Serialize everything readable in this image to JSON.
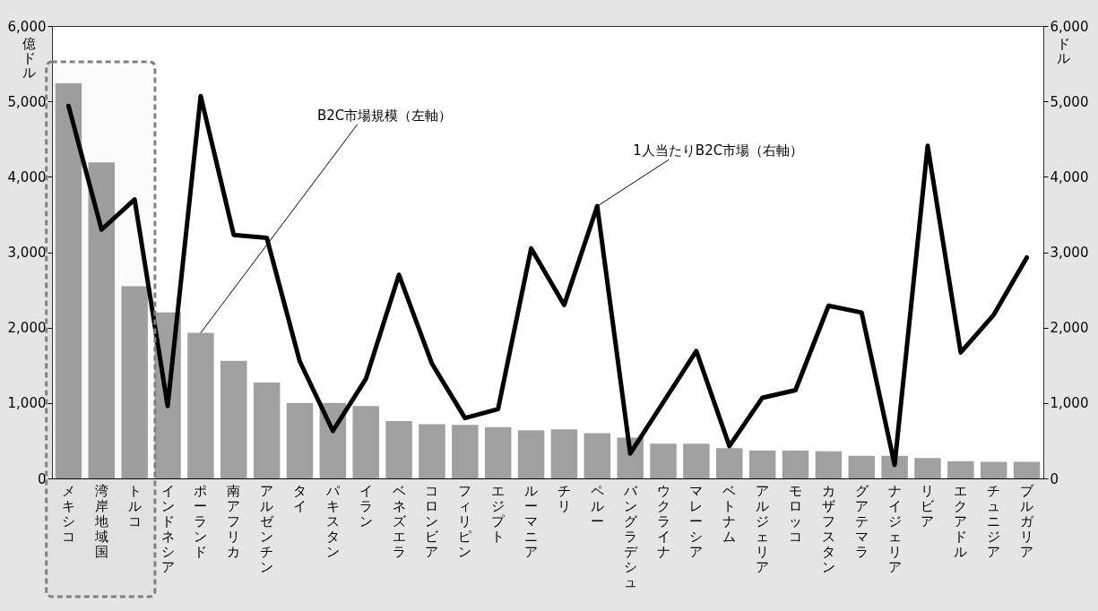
{
  "chart_data": {
    "type": "bar",
    "categories": [
      "メキシコ",
      "湾岸地域国",
      "トルコ",
      "インドネシア",
      "ポーランド",
      "南アフリカ",
      "アルゼンチン",
      "タイ",
      "パキスタン",
      "イラン",
      "ベネズエラ",
      "コロンビア",
      "フィリピン",
      "エジプト",
      "ルーマニア",
      "チリ",
      "ペルー",
      "バングラデシュ",
      "ウクライナ",
      "マレーシア",
      "ベトナム",
      "アルジェリア",
      "モロッコ",
      "カザフスタン",
      "グアテマラ",
      "ナイジェリア",
      "リビア",
      "エクアドル",
      "チュニジア",
      "ブルガリア"
    ],
    "series": [
      {
        "color": "#a0a0a0",
        "values": [
          5240,
          4190,
          2550,
          2200,
          1930,
          1560,
          1270,
          1000,
          1000,
          960,
          760,
          720,
          710,
          680,
          640,
          650,
          600,
          540,
          460,
          460,
          400,
          370,
          370,
          360,
          300,
          300,
          270,
          230,
          220,
          220
        ]
      },
      {
        "type": "line",
        "axis": "y2",
        "color": "#000000",
        "values": [
          4940,
          3300,
          3700,
          960,
          5070,
          3230,
          3190,
          1550,
          630,
          1320,
          2700,
          1520,
          800,
          920,
          3050,
          2300,
          3610,
          330,
          1010,
          1690,
          430,
          1070,
          1170,
          2290,
          2200,
          180,
          4410,
          1670,
          2170,
          2930
        ]
      }
    ],
    "ylabel": "億ドル",
    "y2label": "ドル",
    "ylim": [
      0,
      6000
    ],
    "yticks": [
      0,
      {
        "value": 1000,
        "label": "1,000"
      },
      {
        "value": 2000,
        "label": "2,000"
      },
      {
        "value": 3000,
        "label": "3,000"
      },
      {
        "value": 4000,
        "label": "4,000"
      },
      {
        "value": 5000,
        "label": "5,000"
      },
      {
        "value": 6000,
        "label": "6,000"
      }
    ],
    "y2lim": [
      0,
      6000
    ],
    "y2ticks": [
      0,
      {
        "value": 1000,
        "label": "1,000"
      },
      {
        "value": 2000,
        "label": "2,000"
      },
      {
        "value": 3000,
        "label": "3,000"
      },
      {
        "value": 4000,
        "label": "4,000"
      },
      {
        "value": 5000,
        "label": "5,000"
      },
      {
        "value": 6000,
        "label": "6,000"
      }
    ],
    "annotations": [
      {
        "text": "B2C市場規模（左軸）",
        "x": "ポーランド",
        "y": 1930
      },
      {
        "text": "1人当たりB2C市場（右軸）",
        "x": "ペルー",
        "y": 3610
      }
    ],
    "bands": [
      {
        "axis": "x",
        "from": "メキシコ",
        "to": "トルコ",
        "color": "#808080"
      }
    ],
    "grid": false
  }
}
